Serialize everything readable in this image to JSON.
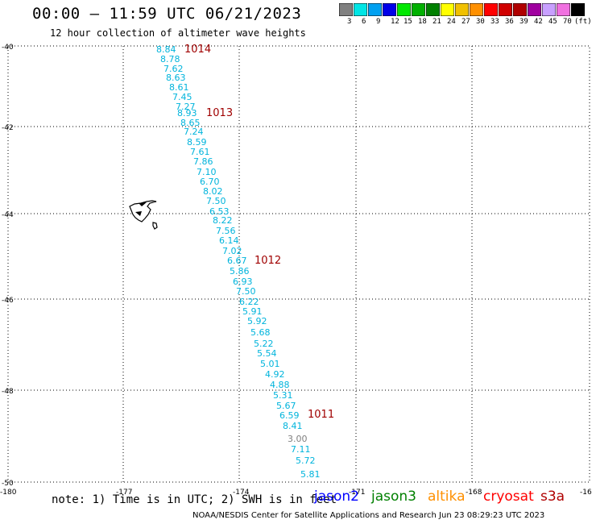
{
  "header": {
    "title": "00:00 – 11:59 UTC 06/21/2023",
    "subtitle": "12 hour collection of altimeter wave heights"
  },
  "legend": {
    "swatch_colors": [
      "#808080",
      "#00e5e5",
      "#00a0f0",
      "#0000e8",
      "#00e800",
      "#00b000",
      "#008000",
      "#ffff00",
      "#f0c000",
      "#ff9000",
      "#ff0000",
      "#d00000",
      "#b00000",
      "#a000a0",
      "#c8a0ff",
      "#f070e0",
      "#000000"
    ],
    "labels": [
      "3",
      "6",
      "9",
      "12",
      "15",
      "18",
      "21",
      "24",
      "27",
      "30",
      "33",
      "36",
      "39",
      "42",
      "45",
      "70",
      "(ft)"
    ]
  },
  "map": {
    "lat_labels": [
      "-40",
      "-42",
      "-44",
      "-46",
      "-48",
      "-50"
    ],
    "lon_labels": [
      "-180",
      "-177",
      "-174",
      "-171",
      "-168",
      "-16"
    ],
    "pass_times": [
      "1014",
      "1013",
      "1012",
      "1011"
    ],
    "wave_heights": [
      "8.84",
      "8.78",
      "7.62",
      "8.63",
      "8.61",
      "7.45",
      "7.27",
      "8.93",
      "8.65",
      "7.24",
      "8.59",
      "7.61",
      "7.86",
      "7.10",
      "6.70",
      "8.02",
      "7.50",
      "6.53",
      "8.22",
      "7.56",
      "6.14",
      "7.02",
      "6.67",
      "5.86",
      "6.93",
      "7.50",
      "6.22",
      "5.91",
      "5.92",
      "5.68",
      "5.22",
      "5.54",
      "5.01",
      "4.92",
      "4.88",
      "5.31",
      "5.67",
      "6.59",
      "8.41",
      "3.00",
      "7.11",
      "5.72",
      "5.81"
    ],
    "island_icon": "island-coastline"
  },
  "notes": {
    "note": "note:  1) Time is in UTC;  2) SWH is in feet",
    "missions": [
      "jason2",
      "jason3",
      "altika",
      "cryosat",
      "s3a"
    ],
    "mission_colors": [
      "#0000ff",
      "#008000",
      "#ff9000",
      "#ff0000",
      "#b00000"
    ],
    "footer": "NOAA/NESDIS Center for Satellite Applications and Research    Jun 23 08:29:23 UTC 2023"
  },
  "colors": {
    "wave_label": "#00b4dc",
    "wave_label_grey": "#808080",
    "time_label": "#a00000"
  }
}
